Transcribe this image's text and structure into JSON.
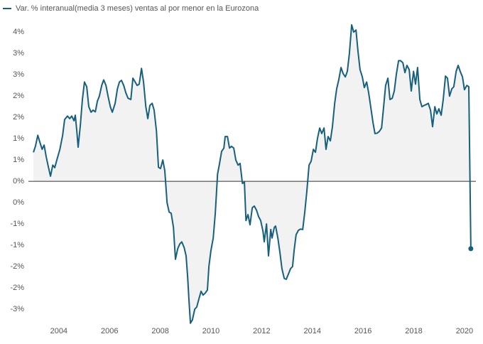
{
  "chart_data": {
    "type": "line",
    "x": [
      2003.0,
      2003.08,
      2003.17,
      2003.25,
      2003.34,
      2003.42,
      2003.5,
      2003.59,
      2003.67,
      2003.76,
      2003.84,
      2003.92,
      2004.04,
      2004.15,
      2004.23,
      2004.34,
      2004.43,
      2004.51,
      2004.6,
      2004.65,
      2004.71,
      2004.76,
      2004.85,
      2004.93,
      2005.01,
      2005.1,
      2005.18,
      2005.27,
      2005.35,
      2005.44,
      2005.52,
      2005.6,
      2005.69,
      2005.77,
      2005.86,
      2005.94,
      2006.03,
      2006.11,
      2006.22,
      2006.31,
      2006.39,
      2006.47,
      2006.56,
      2006.64,
      2006.73,
      2006.84,
      2006.92,
      2007.01,
      2007.09,
      2007.17,
      2007.26,
      2007.34,
      2007.43,
      2007.51,
      2007.59,
      2007.68,
      2007.76,
      2007.85,
      2007.93,
      2008.01,
      2008.1,
      2008.18,
      2008.27,
      2008.35,
      2008.43,
      2008.52,
      2008.6,
      2008.69,
      2008.77,
      2008.85,
      2008.94,
      2009.02,
      2009.08,
      2009.13,
      2009.19,
      2009.27,
      2009.36,
      2009.44,
      2009.53,
      2009.61,
      2009.69,
      2009.78,
      2009.86,
      2009.92,
      2010.0,
      2010.09,
      2010.17,
      2010.26,
      2010.34,
      2010.42,
      2010.51,
      2010.56,
      2010.65,
      2010.73,
      2010.81,
      2010.9,
      2010.98,
      2011.07,
      2011.15,
      2011.24,
      2011.32,
      2011.38,
      2011.46,
      2011.54,
      2011.63,
      2011.71,
      2011.8,
      2011.88,
      2011.96,
      2012.05,
      2012.1,
      2012.19,
      2012.27,
      2012.36,
      2012.41,
      2012.5,
      2012.55,
      2012.64,
      2012.72,
      2012.8,
      2012.89,
      2012.97,
      2013.06,
      2013.14,
      2013.22,
      2013.28,
      2013.36,
      2013.45,
      2013.53,
      2013.62,
      2013.7,
      2013.78,
      2013.87,
      2013.95,
      2014.04,
      2014.12,
      2014.2,
      2014.29,
      2014.37,
      2014.46,
      2014.54,
      2014.62,
      2014.71,
      2014.79,
      2014.88,
      2014.96,
      2015.04,
      2015.13,
      2015.21,
      2015.3,
      2015.38,
      2015.46,
      2015.55,
      2015.63,
      2015.72,
      2015.8,
      2015.88,
      2015.97,
      2016.05,
      2016.14,
      2016.22,
      2016.3,
      2016.39,
      2016.47,
      2016.56,
      2016.64,
      2016.73,
      2016.81,
      2016.89,
      2016.98,
      2017.06,
      2017.15,
      2017.23,
      2017.31,
      2017.4,
      2017.48,
      2017.57,
      2017.65,
      2017.73,
      2017.82,
      2017.9,
      2017.99,
      2018.07,
      2018.15,
      2018.24,
      2018.32,
      2018.41,
      2018.49,
      2018.57,
      2018.66,
      2018.74,
      2018.83,
      2018.91,
      2018.99,
      2019.08,
      2019.16,
      2019.25,
      2019.33,
      2019.41,
      2019.5,
      2019.58,
      2019.67,
      2019.75,
      2019.83,
      2019.92,
      2020.0,
      2020.09,
      2020.17,
      2020.25
    ],
    "series": [
      {
        "name": "Var. % interanual(media 3 meses) ventas al por menor en la Eurozona",
        "color": "#17607d",
        "values": [
          0.68,
          0.83,
          1.08,
          0.92,
          0.75,
          0.85,
          0.58,
          0.33,
          0.12,
          0.38,
          0.32,
          0.5,
          0.75,
          1.08,
          1.45,
          1.53,
          1.47,
          1.53,
          1.42,
          1.55,
          1.17,
          0.8,
          1.33,
          1.92,
          2.33,
          2.22,
          1.75,
          1.62,
          1.67,
          1.63,
          1.88,
          2.0,
          2.25,
          2.38,
          2.25,
          2.0,
          1.75,
          1.62,
          1.83,
          2.17,
          2.33,
          2.37,
          2.25,
          2.08,
          1.95,
          1.92,
          2.42,
          2.33,
          2.25,
          2.28,
          2.65,
          2.33,
          1.75,
          1.47,
          1.78,
          1.83,
          1.67,
          1.17,
          0.33,
          0.3,
          0.5,
          0.25,
          -0.5,
          -0.72,
          -0.75,
          -1.08,
          -1.83,
          -1.58,
          -1.47,
          -1.42,
          -1.55,
          -1.75,
          -2.25,
          -2.75,
          -3.33,
          -3.25,
          -3.0,
          -2.95,
          -2.75,
          -2.58,
          -2.67,
          -2.62,
          -2.55,
          -2.0,
          -1.62,
          -1.33,
          -0.75,
          0.17,
          0.42,
          0.7,
          0.78,
          1.05,
          1.05,
          0.78,
          0.82,
          0.78,
          0.5,
          0.38,
          0.42,
          -0.05,
          -0.02,
          -0.92,
          -0.78,
          -1.02,
          -0.62,
          -0.58,
          -0.68,
          -0.83,
          -0.92,
          -1.17,
          -1.42,
          -1.0,
          -1.75,
          -1.13,
          -1.33,
          -1.08,
          -1.05,
          -1.33,
          -1.67,
          -2.05,
          -2.28,
          -2.3,
          -2.17,
          -2.05,
          -2.0,
          -1.62,
          -1.25,
          -1.15,
          -1.12,
          -1.13,
          -0.72,
          -0.25,
          0.38,
          0.47,
          0.75,
          0.68,
          1.0,
          1.25,
          1.12,
          1.25,
          0.75,
          1.05,
          0.95,
          1.28,
          1.83,
          2.17,
          2.38,
          2.67,
          2.53,
          2.45,
          2.58,
          3.0,
          3.67,
          3.5,
          3.55,
          3.05,
          2.62,
          2.45,
          2.2,
          2.33,
          2.08,
          1.75,
          1.38,
          1.12,
          1.13,
          1.17,
          1.25,
          1.75,
          2.25,
          2.42,
          1.92,
          1.95,
          2.12,
          2.5,
          2.83,
          2.83,
          2.78,
          2.55,
          2.72,
          2.62,
          2.12,
          2.58,
          2.28,
          2.67,
          1.92,
          1.75,
          1.78,
          1.8,
          1.83,
          1.67,
          1.28,
          1.75,
          1.58,
          1.7,
          1.55,
          1.92,
          2.47,
          2.42,
          2.0,
          2.17,
          2.22,
          2.58,
          2.72,
          2.58,
          2.45,
          2.15,
          2.25,
          2.22,
          -1.58
        ]
      }
    ],
    "xlim": [
      2002.8,
      2020.45
    ],
    "xticks": [
      2004,
      2006,
      2008,
      2010,
      2012,
      2014,
      2016,
      2018,
      2020
    ],
    "ylim": [
      -3.45,
      3.67
    ],
    "yticks": [
      {
        "value": 3.5,
        "label": "4%"
      },
      {
        "value": 3,
        "label": "3%"
      },
      {
        "value": 2.5,
        "label": "3%"
      },
      {
        "value": 2,
        "label": "2%"
      },
      {
        "value": 1.5,
        "label": "2%"
      },
      {
        "value": 1,
        "label": "1%"
      },
      {
        "value": 0.5,
        "label": "1%"
      },
      {
        "value": 0,
        "label": "0%"
      },
      {
        "value": -0.5,
        "label": "0%"
      },
      {
        "value": -1,
        "label": "-1%"
      },
      {
        "value": -1.5,
        "label": "-1%"
      },
      {
        "value": -2,
        "label": "-2%"
      },
      {
        "value": -2.5,
        "label": "-2%"
      },
      {
        "value": -3,
        "label": "-3%"
      }
    ],
    "area_fill": "#f2f2f2",
    "zero_line": true,
    "end_marker": true,
    "legend": "top-left"
  }
}
